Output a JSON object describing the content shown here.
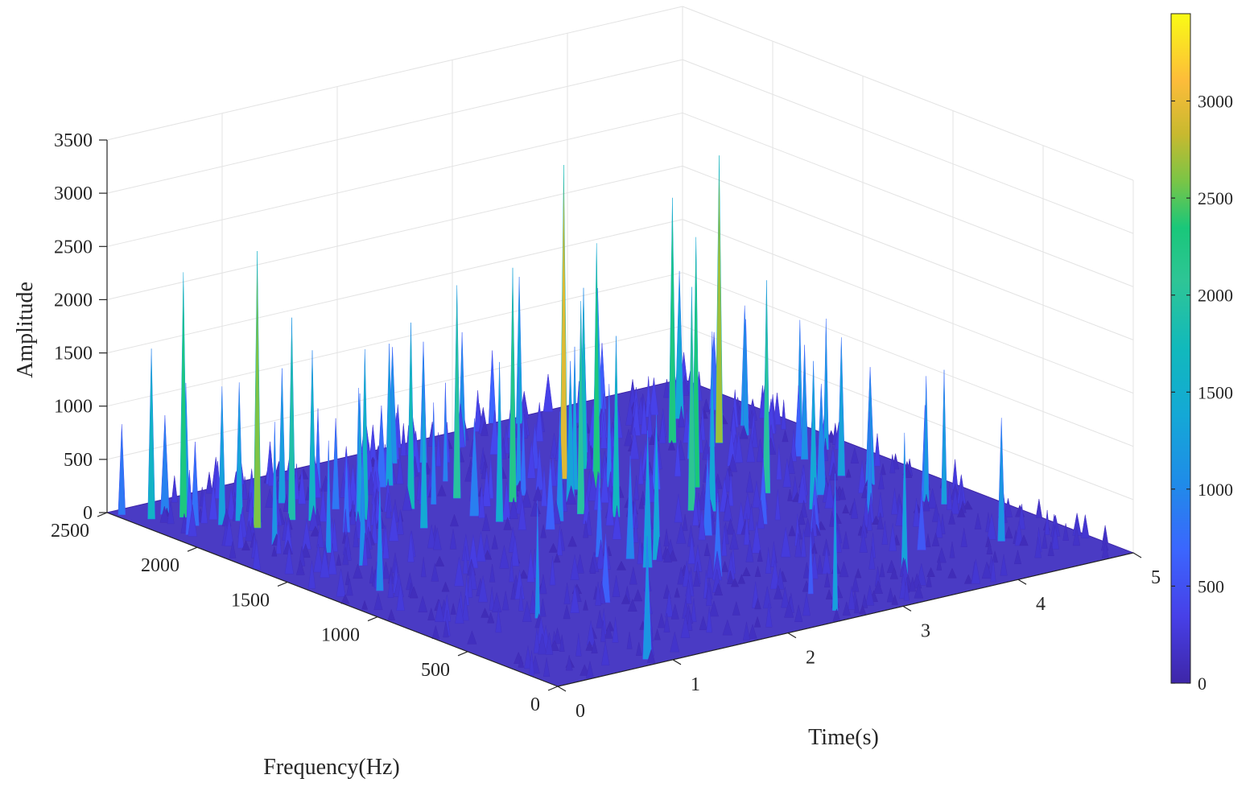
{
  "chart_data": {
    "type": "surface",
    "title": "",
    "xlabel": "Time(s)",
    "ylabel": "Frequency(Hz)",
    "zlabel": "Amplitude",
    "xlim": [
      0,
      5
    ],
    "ylim": [
      0,
      2500
    ],
    "zlim": [
      0,
      3500
    ],
    "x_ticks": [
      "0",
      "1",
      "2",
      "3",
      "4",
      "5"
    ],
    "y_ticks": [
      "0",
      "500",
      "1000",
      "1500",
      "2000",
      "2500"
    ],
    "z_ticks": [
      "0",
      "500",
      "1000",
      "1500",
      "2000",
      "2500",
      "3000",
      "3500"
    ],
    "colorbar": {
      "colormap": "parula",
      "clim": [
        0,
        3450
      ],
      "ticks": [
        "0",
        "500",
        "1000",
        "1500",
        "2000",
        "2500",
        "3000"
      ]
    },
    "grid": true,
    "peak_amplitude": 2950,
    "peaks": [
      {
        "time": 4.05,
        "frequency": 1950,
        "amplitude": 2300
      },
      {
        "time": 4.3,
        "frequency": 1850,
        "amplitude": 2700
      },
      {
        "time": 3.2,
        "frequency": 1900,
        "amplitude": 1700
      },
      {
        "time": 3.85,
        "frequency": 1300,
        "amplitude": 2000
      },
      {
        "time": 3.55,
        "frequency": 1500,
        "amplitude": 2350
      },
      {
        "time": 3.2,
        "frequency": 1300,
        "amplitude": 2100
      },
      {
        "time": 3.0,
        "frequency": 1700,
        "amplitude": 2300
      },
      {
        "time": 2.95,
        "frequency": 1850,
        "amplitude": 2950
      },
      {
        "time": 2.35,
        "frequency": 1750,
        "amplitude": 2200
      },
      {
        "time": 2.1,
        "frequency": 1900,
        "amplitude": 2000
      },
      {
        "time": 2.55,
        "frequency": 1500,
        "amplitude": 2000
      },
      {
        "time": 1.7,
        "frequency": 1900,
        "amplitude": 1750
      },
      {
        "time": 1.3,
        "frequency": 1900,
        "amplitude": 1600
      },
      {
        "time": 1.0,
        "frequency": 2000,
        "amplitude": 1600
      },
      {
        "time": 0.9,
        "frequency": 2050,
        "amplitude": 1900
      },
      {
        "time": 0.6,
        "frequency": 2150,
        "amplitude": 1300
      },
      {
        "time": 0.35,
        "frequency": 2300,
        "amplitude": 2300
      },
      {
        "time": 0.6,
        "frequency": 2050,
        "amplitude": 2600
      },
      {
        "time": 0.45,
        "frequency": 2150,
        "amplitude": 1300
      },
      {
        "time": 0.15,
        "frequency": 2350,
        "amplitude": 1600
      },
      {
        "time": 0.05,
        "frequency": 2450,
        "amplitude": 850
      },
      {
        "time": 1.5,
        "frequency": 1700,
        "amplitude": 1400
      },
      {
        "time": 2.0,
        "frequency": 1600,
        "amplitude": 1500
      },
      {
        "time": 2.7,
        "frequency": 1400,
        "amplitude": 1700
      },
      {
        "time": 3.3,
        "frequency": 1250,
        "amplitude": 1400
      },
      {
        "time": 4.5,
        "frequency": 1300,
        "amplitude": 1300
      },
      {
        "time": 4.6,
        "frequency": 900,
        "amplitude": 900
      },
      {
        "time": 1.1,
        "frequency": 1800,
        "amplitude": 1300
      }
    ]
  }
}
